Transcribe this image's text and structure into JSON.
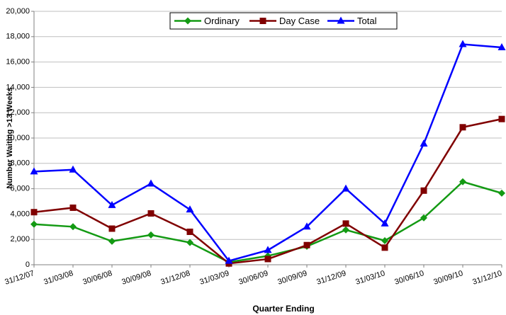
{
  "chart_data": {
    "type": "line",
    "xlabel": "Quarter Ending",
    "ylabel": "Number Waiting >13 Weeks",
    "categories": [
      "31/12/07",
      "31/03/08",
      "30/06/08",
      "30/09/08",
      "31/12/08",
      "31/03/09",
      "30/06/09",
      "30/09/09",
      "31/12/09",
      "31/03/10",
      "30/06/10",
      "30/09/10",
      "31/12/10"
    ],
    "series": [
      {
        "name": "Ordinary",
        "color": "#139a13",
        "marker": "diamond",
        "values": [
          3200,
          3000,
          1850,
          2350,
          1750,
          200,
          700,
          1450,
          2750,
          1900,
          3700,
          6550,
          5650
        ]
      },
      {
        "name": "Day Case",
        "color": "#800000",
        "marker": "square",
        "values": [
          4150,
          4500,
          2850,
          4050,
          2600,
          100,
          450,
          1550,
          3250,
          1350,
          5850,
          10850,
          11500
        ]
      },
      {
        "name": "Total",
        "color": "#0000ff",
        "marker": "triangle",
        "values": [
          7350,
          7500,
          4700,
          6400,
          4350,
          300,
          1150,
          3000,
          6000,
          3250,
          9550,
          17400,
          17150
        ]
      }
    ],
    "ylim": [
      0,
      20000
    ],
    "yticks": [
      0,
      {
        "value": 2000,
        "label": "2,000"
      },
      {
        "value": 4000,
        "label": "4,000"
      },
      {
        "value": 6000,
        "label": "6,000"
      },
      {
        "value": 8000,
        "label": "8,000"
      },
      {
        "value": 10000,
        "label": "10,000"
      },
      {
        "value": 12000,
        "label": "12,000"
      },
      {
        "value": 14000,
        "label": "14,000"
      },
      {
        "value": 16000,
        "label": "16,000"
      },
      {
        "value": 18000,
        "label": "18,000"
      },
      {
        "value": 20000,
        "label": "20,000"
      }
    ],
    "grid": true,
    "legend": "top"
  }
}
